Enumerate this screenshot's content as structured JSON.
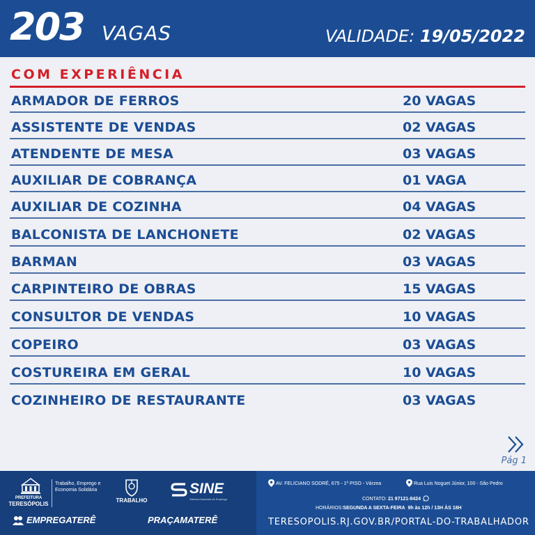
{
  "header": {
    "count": "203",
    "vagas_label": "VAGAS",
    "validade_label": "VALIDADE:",
    "validade_date": "19/05/2022"
  },
  "section": {
    "title": "COM EXPERIÊNCIA"
  },
  "jobs": [
    {
      "title": "ARMADOR DE FERROS",
      "qty": "20 VAGAS"
    },
    {
      "title": "ASSISTENTE DE VENDAS",
      "qty": "02 VAGAS"
    },
    {
      "title": "ATENDENTE DE MESA",
      "qty": "03 VAGAS"
    },
    {
      "title": "AUXILIAR DE COBRANÇA",
      "qty": "01 VAGA"
    },
    {
      "title": "AUXILIAR DE COZINHA",
      "qty": "04 VAGAS"
    },
    {
      "title": "BALCONISTA DE LANCHONETE",
      "qty": "02 VAGAS"
    },
    {
      "title": "BARMAN",
      "qty": "03 VAGAS"
    },
    {
      "title": "CARPINTEIRO DE OBRAS",
      "qty": "15 VAGAS"
    },
    {
      "title": "CONSULTOR DE VENDAS",
      "qty": "10 VAGAS"
    },
    {
      "title": "COPEIRO",
      "qty": "03 VAGAS"
    },
    {
      "title": "COSTUREIRA EM GERAL",
      "qty": "10 VAGAS"
    },
    {
      "title": "COZINHEIRO DE RESTAURANTE",
      "qty": "03 VAGAS"
    }
  ],
  "pagination": {
    "page_label": "Pág 1",
    "next_icon": "chevron-double-right-icon"
  },
  "footer": {
    "prefeitura_label": "PREFEITURA",
    "city": "TERESÓPOLIS",
    "secretaria": "Trabalho, Emprego e Economia Solidária",
    "trabalho_label": "TRABALHO",
    "sine_label": "SINE",
    "sine_sub": "Sistema Nacional de Emprego",
    "empregatere": "EMPREGATERÊ",
    "pracamatere": "PRAÇAMATERÊ",
    "address_1": "AV. FELICIANO SODRÉ, 675 - 1º PISO - Várzea",
    "address_2": "Rua Luis Noguet Júnior, 100 - São Pedro",
    "contato_label": "CONTATO:",
    "contato_phone": "21 97121-8424",
    "horarios_label": "HORÁRIOS:",
    "horarios_days": "SEGUNDA A SEXTA-FEIRA",
    "horarios_times": "9h às 12h / 13H ÀS 18H",
    "portal_url": "TERESOPOLIS.RJ.GOV.BR/PORTAL-DO-TRABALHADOR"
  },
  "colors": {
    "primary": "#1c4d94",
    "accent": "#d32028",
    "background": "#eef0f5"
  }
}
